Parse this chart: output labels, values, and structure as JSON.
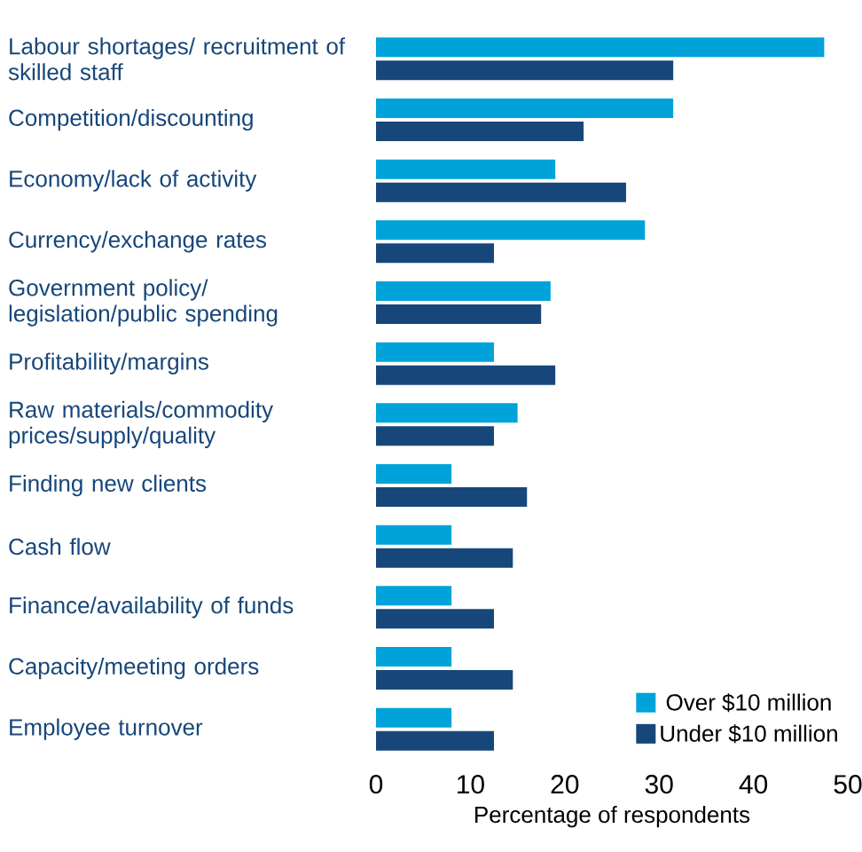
{
  "chart_data": {
    "type": "bar",
    "orientation": "horizontal",
    "xlabel": "Percentage of respondents",
    "categories": [
      "Labour shortages/ recruitment of skilled staff",
      "Competition/discounting",
      "Economy/lack of activity",
      "Currency/exchange rates",
      "Government policy/ legislation/public spending",
      "Profitability/margins",
      "Raw materials/commodity prices/supply/quality",
      "Finding new clients",
      "Cash flow",
      "Finance/availability of funds",
      "Capacity/meeting orders",
      "Employee turnover"
    ],
    "series": [
      {
        "name": "Over $10 million",
        "color": "#00a3d9",
        "values": [
          47.5,
          31.5,
          19,
          28.5,
          18.5,
          12.5,
          15,
          8,
          8,
          8,
          8,
          8
        ]
      },
      {
        "name": "Under $10 million",
        "color": "#17477a",
        "values": [
          31.5,
          22,
          26.5,
          12.5,
          17.5,
          19,
          12.5,
          16,
          14.5,
          12.5,
          14.5,
          12.5
        ]
      }
    ],
    "xlim": [
      0,
      50
    ],
    "xticks": [
      0,
      10,
      20,
      30,
      40,
      50
    ],
    "grid": false,
    "legend": "bottom right"
  }
}
